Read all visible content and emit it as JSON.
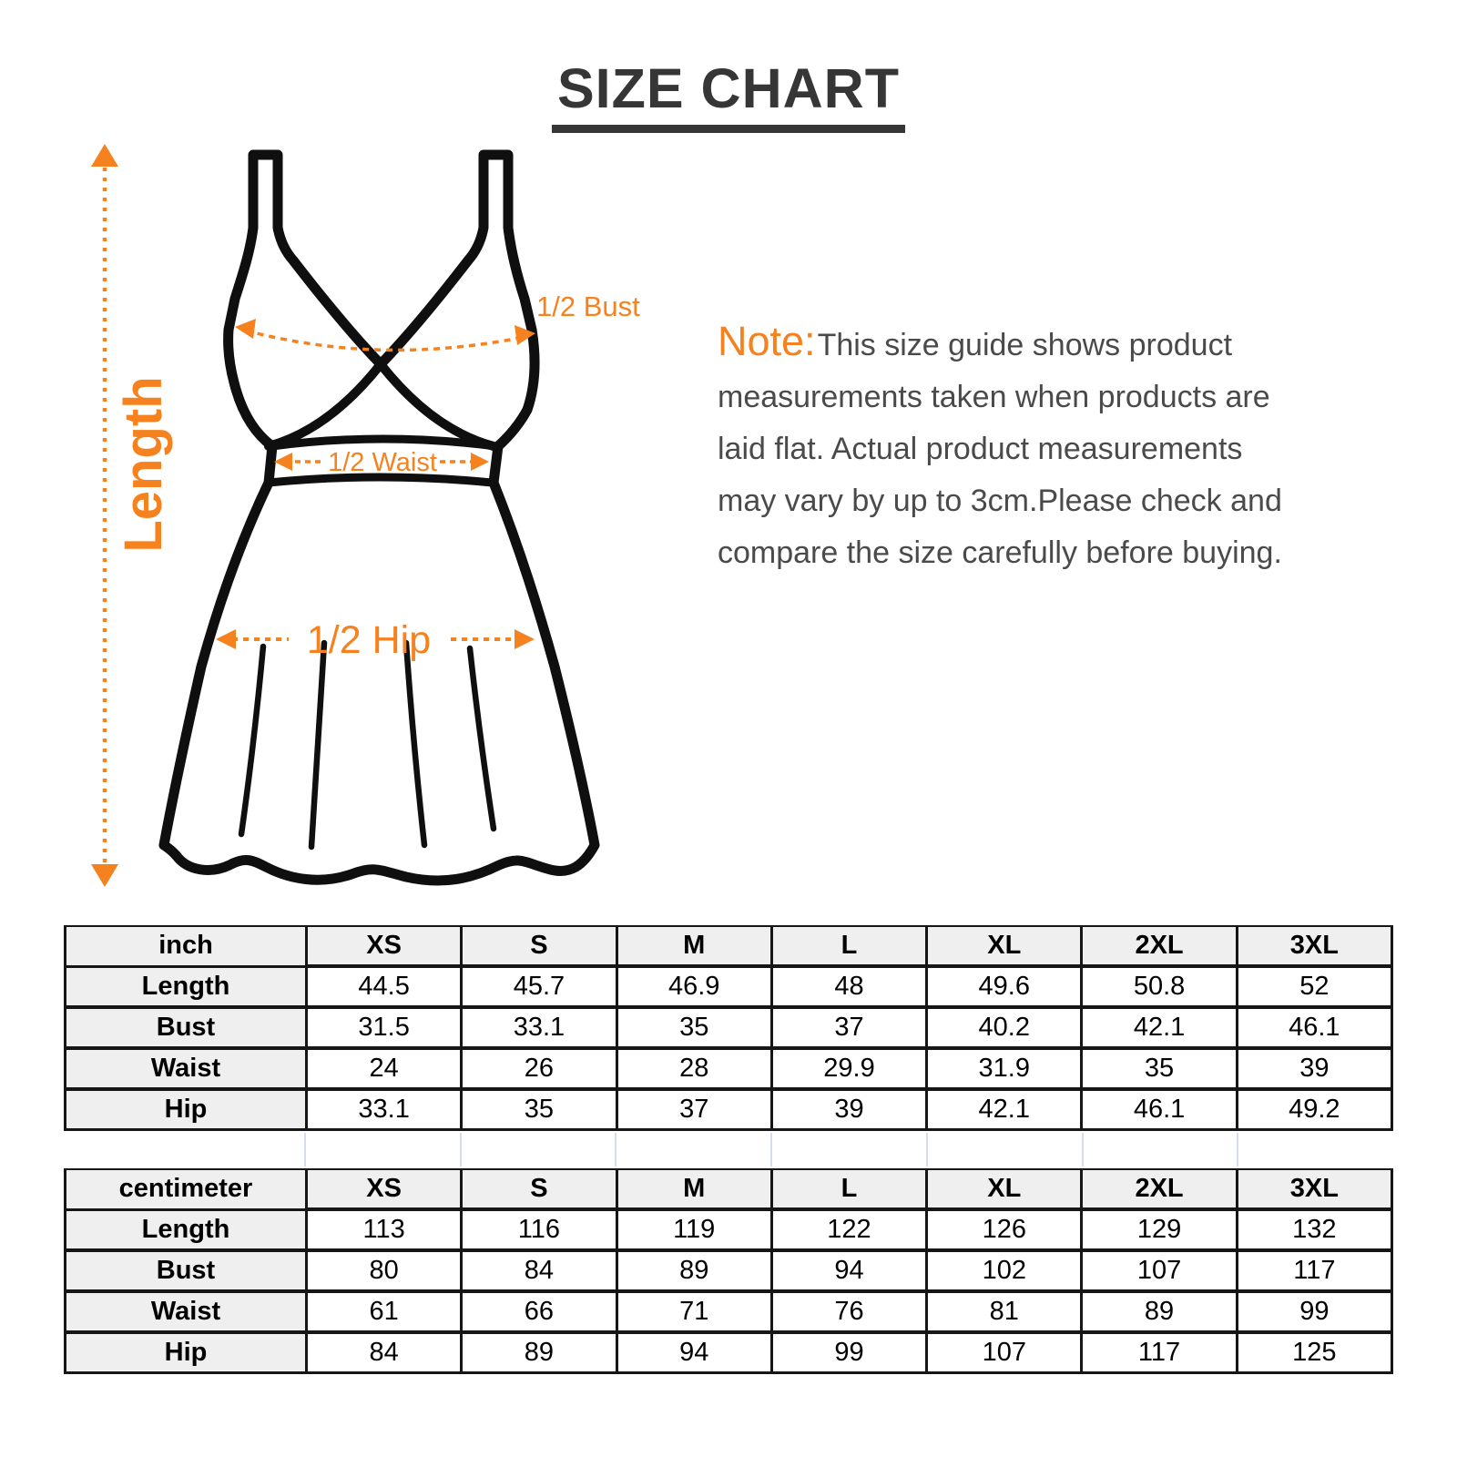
{
  "title": "SIZE CHART",
  "note": {
    "prefix": "Note:",
    "lines": [
      "This size guide shows product",
      "measurements taken when products are",
      "laid flat. Actual product measurements",
      "may vary by up to 3cm.Please check and",
      "compare the size carefully before buying."
    ]
  },
  "diagram": {
    "length_label": "Length",
    "bust_label": "1/2 Bust",
    "waist_label": "1/2 Waist",
    "hip_label": "1/2 Hip"
  },
  "colors": {
    "accent_orange": "#f5821f",
    "title_dark": "#363636",
    "note_gray": "#4a4a4a",
    "line_black": "#0f0f0f",
    "table_border": "#161616",
    "header_bg": "#efefef",
    "gap_guide": "#c7d3e6"
  },
  "tables": [
    {
      "unit_label": "inch",
      "sizes": [
        "XS",
        "S",
        "M",
        "L",
        "XL",
        "2XL",
        "3XL"
      ],
      "rows": [
        {
          "label": "Length",
          "values": [
            "44.5",
            "45.7",
            "46.9",
            "48",
            "49.6",
            "50.8",
            "52"
          ]
        },
        {
          "label": "Bust",
          "values": [
            "31.5",
            "33.1",
            "35",
            "37",
            "40.2",
            "42.1",
            "46.1"
          ]
        },
        {
          "label": "Waist",
          "values": [
            "24",
            "26",
            "28",
            "29.9",
            "31.9",
            "35",
            "39"
          ]
        },
        {
          "label": "Hip",
          "values": [
            "33.1",
            "35",
            "37",
            "39",
            "42.1",
            "46.1",
            "49.2"
          ]
        }
      ]
    },
    {
      "unit_label": "centimeter",
      "sizes": [
        "XS",
        "S",
        "M",
        "L",
        "XL",
        "2XL",
        "3XL"
      ],
      "rows": [
        {
          "label": "Length",
          "values": [
            "113",
            "116",
            "119",
            "122",
            "126",
            "129",
            "132"
          ]
        },
        {
          "label": "Bust",
          "values": [
            "80",
            "84",
            "89",
            "94",
            "102",
            "107",
            "117"
          ]
        },
        {
          "label": "Waist",
          "values": [
            "61",
            "66",
            "71",
            "76",
            "81",
            "89",
            "99"
          ]
        },
        {
          "label": "Hip",
          "values": [
            "84",
            "89",
            "94",
            "99",
            "107",
            "117",
            "125"
          ]
        }
      ]
    }
  ]
}
